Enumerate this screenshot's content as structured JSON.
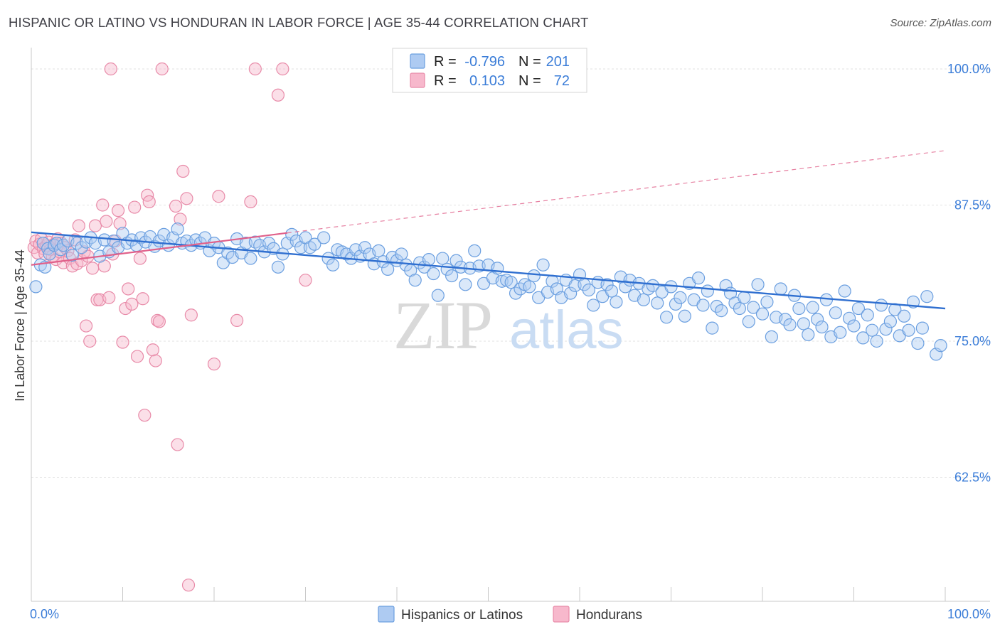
{
  "title": "HISPANIC OR LATINO VS HONDURAN IN LABOR FORCE | AGE 35-44 CORRELATION CHART",
  "source": "Source: ZipAtlas.com",
  "watermark": {
    "zip": "ZIP",
    "atlas": "atlas"
  },
  "legend_box": {
    "r_label": "R =",
    "n_label": "N =",
    "rows": [
      {
        "series": "Hispanics or Latinos",
        "r": "-0.796",
        "n": "201",
        "fill": "#aecbf2",
        "stroke": "#6b9fe0"
      },
      {
        "series": "Hondurans",
        "r": "0.103",
        "n": "72",
        "fill": "#f7b8cc",
        "stroke": "#e88aa8"
      }
    ]
  },
  "bottom_legend": [
    {
      "label": "Hispanics or Latinos",
      "fill": "#aecbf2",
      "stroke": "#6b9fe0"
    },
    {
      "label": "Hondurans",
      "fill": "#f7b8cc",
      "stroke": "#e88aa8"
    }
  ],
  "chart_data": {
    "type": "scatter",
    "title": "HISPANIC OR LATINO VS HONDURAN IN LABOR FORCE | AGE 35-44 CORRELATION CHART",
    "xlabel": "",
    "ylabel": "In Labor Force | Age 35-44",
    "xlim": [
      0,
      100
    ],
    "ylim": [
      50,
      102
    ],
    "x_tick_labels": [
      "0.0%",
      "100.0%"
    ],
    "y_ticks": [
      62.5,
      75.0,
      87.5,
      100.0
    ],
    "y_tick_labels": [
      "62.5%",
      "75.0%",
      "87.5%",
      "100.0%"
    ],
    "grid": true,
    "legend_position": "top-center",
    "colors": {
      "blue": "#6b9fe0",
      "blue_fill": "#aecbf2",
      "blue_line": "#2f6fd0",
      "pink": "#e88aa8",
      "pink_fill": "#f7b8cc",
      "pink_line": "#e0608a"
    },
    "series": [
      {
        "name": "Hispanics or Latinos",
        "r": -0.796,
        "n": 201,
        "trend": {
          "x": [
            0,
            100
          ],
          "y": [
            85.0,
            78.0
          ],
          "style": "solid"
        },
        "points": [
          [
            0.5,
            80.0
          ],
          [
            1.0,
            82.0
          ],
          [
            1.3,
            84.0
          ],
          [
            1.5,
            81.8
          ],
          [
            1.8,
            83.5
          ],
          [
            2.0,
            83.0
          ],
          [
            2.5,
            83.8
          ],
          [
            2.8,
            84.0
          ],
          [
            3.2,
            83.4
          ],
          [
            3.5,
            83.8
          ],
          [
            4.0,
            84.2
          ],
          [
            4.5,
            82.9
          ],
          [
            5.0,
            84.0
          ],
          [
            5.5,
            83.6
          ],
          [
            6.0,
            84.1
          ],
          [
            6.5,
            84.5
          ],
          [
            7.0,
            84.0
          ],
          [
            7.5,
            82.8
          ],
          [
            8.0,
            84.3
          ],
          [
            8.5,
            83.2
          ],
          [
            9.0,
            84.2
          ],
          [
            9.5,
            83.6
          ],
          [
            10.0,
            84.9
          ],
          [
            10.5,
            84.0
          ],
          [
            11.0,
            84.3
          ],
          [
            11.5,
            83.8
          ],
          [
            12.0,
            84.5
          ],
          [
            12.5,
            84.1
          ],
          [
            13.0,
            84.6
          ],
          [
            13.5,
            83.7
          ],
          [
            14.0,
            84.2
          ],
          [
            14.5,
            84.8
          ],
          [
            15.0,
            83.8
          ],
          [
            15.5,
            84.5
          ],
          [
            16.0,
            85.3
          ],
          [
            16.5,
            84.0
          ],
          [
            17.0,
            84.2
          ],
          [
            17.5,
            83.8
          ],
          [
            18.0,
            84.3
          ],
          [
            18.5,
            84.0
          ],
          [
            19.0,
            84.5
          ],
          [
            19.5,
            83.3
          ],
          [
            20.0,
            84.0
          ],
          [
            20.5,
            83.6
          ],
          [
            21.0,
            82.2
          ],
          [
            21.5,
            83.1
          ],
          [
            22.0,
            82.7
          ],
          [
            22.5,
            84.4
          ],
          [
            23.0,
            83.1
          ],
          [
            23.5,
            84.0
          ],
          [
            24.0,
            82.6
          ],
          [
            24.5,
            84.1
          ],
          [
            25.0,
            83.8
          ],
          [
            25.5,
            83.2
          ],
          [
            26.0,
            84.0
          ],
          [
            26.5,
            83.5
          ],
          [
            27.0,
            81.8
          ],
          [
            27.5,
            83.0
          ],
          [
            28.0,
            84.0
          ],
          [
            28.5,
            84.8
          ],
          [
            29.0,
            84.2
          ],
          [
            29.5,
            83.6
          ],
          [
            30.0,
            84.5
          ],
          [
            30.5,
            83.6
          ],
          [
            31.0,
            83.9
          ],
          [
            32.0,
            84.5
          ],
          [
            32.5,
            82.6
          ],
          [
            33.0,
            82.0
          ],
          [
            33.5,
            83.4
          ],
          [
            34.0,
            83.2
          ],
          [
            34.5,
            83.0
          ],
          [
            35.0,
            82.6
          ],
          [
            35.5,
            83.4
          ],
          [
            36.0,
            82.8
          ],
          [
            36.5,
            83.6
          ],
          [
            37.0,
            83.0
          ],
          [
            37.5,
            82.1
          ],
          [
            38.0,
            83.3
          ],
          [
            38.5,
            82.3
          ],
          [
            39.0,
            81.6
          ],
          [
            39.5,
            82.7
          ],
          [
            40.0,
            82.4
          ],
          [
            40.5,
            83.0
          ],
          [
            41.0,
            82.0
          ],
          [
            41.5,
            81.5
          ],
          [
            42.0,
            80.6
          ],
          [
            42.5,
            82.2
          ],
          [
            43.0,
            81.8
          ],
          [
            43.5,
            82.5
          ],
          [
            44.0,
            81.2
          ],
          [
            44.5,
            79.2
          ],
          [
            45.0,
            82.6
          ],
          [
            45.5,
            81.6
          ],
          [
            46.0,
            81.0
          ],
          [
            46.5,
            82.4
          ],
          [
            47.0,
            81.8
          ],
          [
            47.5,
            80.2
          ],
          [
            48.0,
            81.7
          ],
          [
            48.5,
            83.3
          ],
          [
            49.0,
            81.9
          ],
          [
            49.5,
            80.3
          ],
          [
            50.0,
            82.0
          ],
          [
            50.5,
            80.8
          ],
          [
            51.0,
            81.7
          ],
          [
            51.5,
            80.5
          ],
          [
            52.0,
            80.6
          ],
          [
            52.5,
            80.4
          ],
          [
            53.0,
            79.4
          ],
          [
            53.5,
            79.8
          ],
          [
            54.0,
            80.2
          ],
          [
            54.5,
            80.0
          ],
          [
            55.0,
            81.0
          ],
          [
            55.5,
            79.0
          ],
          [
            56.0,
            82.0
          ],
          [
            56.5,
            79.5
          ],
          [
            57.0,
            80.5
          ],
          [
            57.5,
            79.8
          ],
          [
            58.0,
            79.0
          ],
          [
            58.5,
            80.6
          ],
          [
            59.0,
            79.4
          ],
          [
            59.5,
            80.1
          ],
          [
            60.0,
            81.1
          ],
          [
            60.5,
            80.2
          ],
          [
            61.0,
            79.7
          ],
          [
            61.5,
            78.3
          ],
          [
            62.0,
            80.4
          ],
          [
            62.5,
            79.1
          ],
          [
            63.0,
            80.2
          ],
          [
            63.5,
            79.6
          ],
          [
            64.0,
            78.6
          ],
          [
            64.5,
            80.9
          ],
          [
            65.0,
            80.0
          ],
          [
            65.5,
            80.6
          ],
          [
            66.0,
            79.2
          ],
          [
            66.5,
            80.3
          ],
          [
            67.0,
            78.8
          ],
          [
            67.5,
            79.8
          ],
          [
            68.0,
            80.1
          ],
          [
            68.5,
            78.5
          ],
          [
            69.0,
            79.5
          ],
          [
            69.5,
            77.2
          ],
          [
            70.0,
            80.0
          ],
          [
            70.5,
            78.4
          ],
          [
            71.0,
            79.0
          ],
          [
            71.5,
            77.3
          ],
          [
            72.0,
            80.3
          ],
          [
            72.5,
            78.8
          ],
          [
            73.0,
            80.8
          ],
          [
            73.5,
            78.3
          ],
          [
            74.0,
            79.6
          ],
          [
            74.5,
            76.2
          ],
          [
            75.0,
            78.2
          ],
          [
            75.5,
            77.8
          ],
          [
            76.0,
            80.1
          ],
          [
            76.5,
            79.4
          ],
          [
            77.0,
            78.5
          ],
          [
            77.5,
            78.0
          ],
          [
            78.0,
            79.0
          ],
          [
            78.5,
            76.8
          ],
          [
            79.0,
            78.1
          ],
          [
            79.5,
            80.2
          ],
          [
            80.0,
            77.5
          ],
          [
            80.5,
            78.6
          ],
          [
            81.0,
            75.4
          ],
          [
            81.5,
            77.2
          ],
          [
            82.0,
            79.8
          ],
          [
            82.5,
            77.0
          ],
          [
            83.0,
            76.5
          ],
          [
            83.5,
            79.2
          ],
          [
            84.0,
            78.0
          ],
          [
            84.5,
            76.6
          ],
          [
            85.0,
            75.6
          ],
          [
            85.5,
            78.1
          ],
          [
            86.0,
            77.0
          ],
          [
            86.5,
            76.3
          ],
          [
            87.0,
            78.8
          ],
          [
            87.5,
            75.4
          ],
          [
            88.0,
            77.6
          ],
          [
            88.5,
            75.8
          ],
          [
            89.0,
            79.6
          ],
          [
            89.5,
            77.1
          ],
          [
            90.0,
            76.4
          ],
          [
            90.5,
            78.0
          ],
          [
            91.0,
            75.3
          ],
          [
            91.5,
            77.4
          ],
          [
            92.0,
            76.0
          ],
          [
            92.5,
            75.0
          ],
          [
            93.0,
            78.3
          ],
          [
            93.5,
            76.1
          ],
          [
            94.0,
            76.8
          ],
          [
            94.5,
            77.9
          ],
          [
            95.0,
            75.5
          ],
          [
            95.5,
            77.3
          ],
          [
            96.0,
            76.0
          ],
          [
            96.5,
            78.6
          ],
          [
            97.0,
            74.8
          ],
          [
            97.5,
            76.2
          ],
          [
            98.0,
            79.1
          ],
          [
            99.0,
            73.8
          ],
          [
            99.5,
            74.6
          ]
        ]
      },
      {
        "name": "Hondurans",
        "r": 0.103,
        "n": 72,
        "trend": {
          "x": [
            0,
            100
          ],
          "y": [
            82.0,
            92.5
          ],
          "style": "solid to 28%, then dashed"
        },
        "points": [
          [
            0.3,
            83.6
          ],
          [
            0.5,
            84.2
          ],
          [
            0.7,
            83.1
          ],
          [
            0.9,
            83.9
          ],
          [
            1.1,
            84.4
          ],
          [
            1.3,
            83.5
          ],
          [
            1.5,
            83.0
          ],
          [
            1.7,
            83.8
          ],
          [
            1.9,
            84.1
          ],
          [
            2.1,
            83.4
          ],
          [
            2.3,
            82.8
          ],
          [
            2.5,
            83.9
          ],
          [
            2.7,
            82.5
          ],
          [
            2.9,
            84.4
          ],
          [
            3.1,
            83.2
          ],
          [
            3.3,
            84.0
          ],
          [
            3.5,
            82.2
          ],
          [
            3.7,
            83.6
          ],
          [
            4.0,
            83.3
          ],
          [
            4.2,
            82.6
          ],
          [
            4.5,
            81.9
          ],
          [
            4.8,
            84.3
          ],
          [
            5.0,
            82.1
          ],
          [
            5.2,
            85.6
          ],
          [
            5.5,
            82.4
          ],
          [
            5.8,
            83.2
          ],
          [
            6.0,
            76.4
          ],
          [
            6.2,
            82.8
          ],
          [
            6.4,
            75.0
          ],
          [
            6.7,
            81.7
          ],
          [
            7.0,
            85.6
          ],
          [
            7.2,
            78.8
          ],
          [
            7.5,
            78.8
          ],
          [
            7.8,
            87.5
          ],
          [
            8.0,
            81.9
          ],
          [
            8.2,
            86.0
          ],
          [
            8.5,
            79.0
          ],
          [
            8.7,
            100.0
          ],
          [
            8.9,
            83.0
          ],
          [
            9.2,
            84.2
          ],
          [
            9.5,
            87.0
          ],
          [
            9.7,
            85.8
          ],
          [
            10.0,
            74.9
          ],
          [
            10.3,
            78.0
          ],
          [
            10.6,
            79.8
          ],
          [
            11.0,
            78.4
          ],
          [
            11.3,
            87.3
          ],
          [
            11.6,
            73.6
          ],
          [
            11.9,
            82.6
          ],
          [
            12.2,
            78.9
          ],
          [
            12.4,
            68.2
          ],
          [
            12.7,
            88.4
          ],
          [
            12.9,
            87.8
          ],
          [
            13.3,
            74.2
          ],
          [
            13.6,
            73.2
          ],
          [
            13.8,
            76.9
          ],
          [
            14.0,
            76.8
          ],
          [
            14.3,
            100.0
          ],
          [
            15.8,
            87.4
          ],
          [
            16.0,
            65.5
          ],
          [
            16.3,
            86.2
          ],
          [
            16.6,
            90.6
          ],
          [
            17.0,
            88.1
          ],
          [
            17.2,
            52.6
          ],
          [
            17.5,
            77.4
          ],
          [
            20.0,
            72.9
          ],
          [
            20.5,
            88.3
          ],
          [
            22.5,
            76.9
          ],
          [
            24.0,
            87.8
          ],
          [
            24.5,
            100.0
          ],
          [
            27.0,
            97.6
          ],
          [
            27.5,
            100.0
          ],
          [
            30.0,
            80.6
          ]
        ]
      }
    ]
  }
}
